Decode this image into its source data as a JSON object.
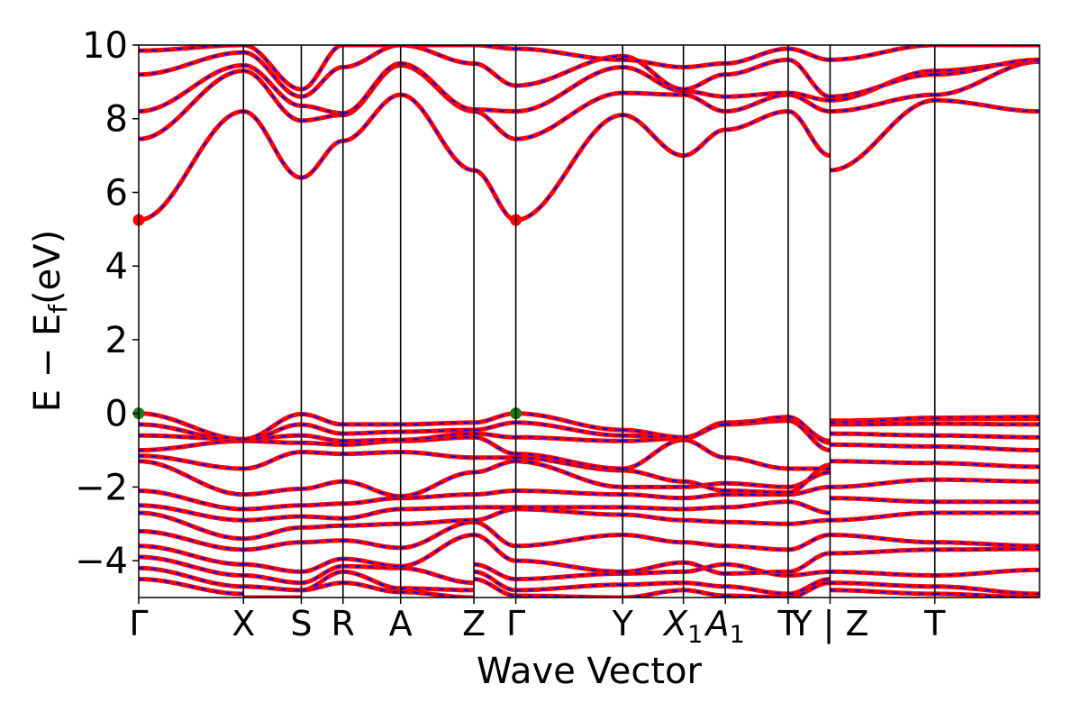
{
  "chart_data": {
    "type": "line",
    "title": "",
    "xlabel": "Wave Vector",
    "ylabel": "E − E",
    "ylabel_sub": "f",
    "ylabel_unit": "(eV)",
    "ylim": [
      -5,
      10
    ],
    "yticks": [
      {
        "value": -4,
        "label": "−4"
      },
      {
        "value": -2,
        "label": "−2"
      },
      {
        "value": 0,
        "label": "0"
      },
      {
        "value": 2,
        "label": "2"
      },
      {
        "value": 4,
        "label": "4"
      },
      {
        "value": 6,
        "label": "6"
      },
      {
        "value": 8,
        "label": "8"
      },
      {
        "value": 10,
        "label": "10"
      }
    ],
    "grid": false,
    "legend": "none",
    "colors": {
      "band_main": "#ff0000",
      "band_dash": "#0000ff",
      "vbm": "#1a7a1a",
      "cbm": "#ff0000",
      "axis": "#000000"
    },
    "segments": [
      [
        0,
        1.0
      ],
      [
        1.0,
        1.552
      ],
      [
        1.552,
        1.95
      ],
      [
        1.95,
        2.5
      ],
      [
        2.5,
        3.2
      ],
      [
        3.2,
        3.6
      ],
      [
        3.6,
        4.62
      ],
      [
        4.62,
        5.2
      ],
      [
        5.2,
        5.6
      ],
      [
        5.6,
        6.2
      ],
      [
        6.2,
        6.6
      ],
      [
        6.6,
        7.6
      ],
      [
        7.6,
        8.6
      ]
    ],
    "kpoints": [
      {
        "x": 0,
        "label": "Γ"
      },
      {
        "x": 1.0,
        "label": "X"
      },
      {
        "x": 1.552,
        "label": "S"
      },
      {
        "x": 1.95,
        "label": "R"
      },
      {
        "x": 2.5,
        "label": "A"
      },
      {
        "x": 3.2,
        "label": "Z"
      },
      {
        "x": 3.6,
        "label": "Γ"
      },
      {
        "x": 4.62,
        "label": "Y"
      },
      {
        "x": 5.2,
        "label": "X",
        "sub": "1"
      },
      {
        "x": 5.6,
        "label": "A",
        "sub": "1"
      },
      {
        "x": 6.2,
        "label": "T"
      },
      {
        "x": 6.6,
        "label": "Y | Z"
      },
      {
        "x": 7.6,
        "label": "T"
      }
    ],
    "markers": [
      {
        "type": "vbm",
        "x": 0,
        "y": 0
      },
      {
        "type": "vbm",
        "x": 3.6,
        "y": 0
      },
      {
        "type": "cbm",
        "x": 0,
        "y": 5.25
      },
      {
        "type": "cbm",
        "x": 3.6,
        "y": 5.25
      }
    ],
    "series": [
      {
        "values": [
          [
            -4.5,
            -4.9
          ],
          [
            -5,
            -5
          ],
          [
            -4.8,
            -4.6
          ],
          [
            -4.6,
            -4.85
          ],
          [
            -4.85,
            -5
          ],
          [
            -4.5,
            -4.95
          ],
          [
            -4.95,
            -5
          ],
          [
            -5,
            -4.8
          ],
          [
            -4.8,
            -4.95
          ],
          [
            -4.95,
            -5
          ],
          [
            -5,
            -4.6
          ],
          [
            -4.8,
            -4.9
          ],
          [
            -4.9,
            -5
          ]
        ]
      },
      {
        "values": [
          [
            -4.2,
            -4.7
          ],
          [
            -4.7,
            -4.8
          ],
          [
            -4.8,
            -4.3
          ],
          [
            -4.3,
            -4.75
          ],
          [
            -4.75,
            -4.8
          ],
          [
            -4.3,
            -4.8
          ],
          [
            -4.8,
            -4.65
          ],
          [
            -4.65,
            -4.6
          ],
          [
            -4.6,
            -4.7
          ],
          [
            -4.7,
            -4.9
          ],
          [
            -4.9,
            -4.5
          ],
          [
            -4.6,
            -4.7
          ],
          [
            -4.7,
            -4.9
          ]
        ]
      },
      {
        "values": [
          [
            -3.9,
            -4.4
          ],
          [
            -4.4,
            -4.6
          ],
          [
            -4.6,
            -4.15
          ],
          [
            -4.15,
            -4.2
          ],
          [
            -4.2,
            -4.6
          ],
          [
            -4.1,
            -4.5
          ],
          [
            -4.5,
            -4.35
          ],
          [
            -4.35,
            -4.3
          ],
          [
            -4.3,
            -4.1
          ],
          [
            -4.1,
            -4.4
          ],
          [
            -4.4,
            -4.3
          ],
          [
            -4.3,
            -4.4
          ],
          [
            -4.4,
            -4.25
          ]
        ]
      },
      {
        "values": [
          [
            -3.6,
            -4.1
          ],
          [
            -4.1,
            -4.3
          ],
          [
            -4.3,
            -3.95
          ],
          [
            -3.95,
            -4.15
          ],
          [
            -4.15,
            -3.3
          ],
          [
            -3.3,
            -4.0
          ],
          [
            -4.0,
            -4.3
          ],
          [
            -4.3,
            -4.05
          ],
          [
            -4.05,
            -4.35
          ],
          [
            -4.35,
            -4.3
          ],
          [
            -4.3,
            -3.8
          ],
          [
            -3.8,
            -3.7
          ],
          [
            -3.7,
            -3.68
          ]
        ]
      },
      {
        "values": [
          [
            -3.2,
            -3.7
          ],
          [
            -3.7,
            -3.5
          ],
          [
            -3.5,
            -3.45
          ],
          [
            -3.45,
            -3.65
          ],
          [
            -3.65,
            -2.95
          ],
          [
            -2.95,
            -3.6
          ],
          [
            -3.6,
            -3.3
          ],
          [
            -3.3,
            -3.5
          ],
          [
            -3.5,
            -3.6
          ],
          [
            -3.6,
            -3.7
          ],
          [
            -3.7,
            -3.3
          ],
          [
            -3.3,
            -3.5
          ],
          [
            -3.5,
            -3.6
          ]
        ]
      },
      {
        "values": [
          [
            -2.7,
            -3.4
          ],
          [
            -3.4,
            -3.1
          ],
          [
            -3.1,
            -3.05
          ],
          [
            -3.05,
            -3.0
          ],
          [
            -3.0,
            -2.9
          ],
          [
            -2.9,
            -2.6
          ],
          [
            -2.6,
            -2.75
          ],
          [
            -2.75,
            -2.9
          ],
          [
            -2.9,
            -2.95
          ],
          [
            -2.95,
            -3.0
          ],
          [
            -3.0,
            -2.9
          ],
          [
            -2.9,
            -2.7
          ],
          [
            -2.7,
            -2.7
          ]
        ]
      },
      {
        "values": [
          [
            -2.5,
            -2.9
          ],
          [
            -2.9,
            -2.8
          ],
          [
            -2.8,
            -2.85
          ],
          [
            -2.85,
            -2.6
          ],
          [
            -2.6,
            -2.55
          ],
          [
            -2.55,
            -2.55
          ],
          [
            -2.55,
            -2.55
          ],
          [
            -2.55,
            -2.6
          ],
          [
            -2.6,
            -2.55
          ],
          [
            -2.55,
            -2.4
          ],
          [
            -2.4,
            -2.7
          ],
          [
            -2.3,
            -2.4
          ],
          [
            -2.4,
            -2.4
          ]
        ]
      },
      {
        "values": [
          [
            -2.1,
            -2.6
          ],
          [
            -2.6,
            -2.5
          ],
          [
            -2.5,
            -2.45
          ],
          [
            -2.45,
            -2.3
          ],
          [
            -2.3,
            -2.2
          ],
          [
            -2.2,
            -2.1
          ],
          [
            -2.1,
            -2.2
          ],
          [
            -2.2,
            -2.3
          ],
          [
            -2.3,
            -2.2
          ],
          [
            -2.2,
            -2.2
          ],
          [
            -2.2,
            -2.0
          ],
          [
            -2.0,
            -1.8
          ],
          [
            -1.8,
            -1.85
          ]
        ]
      },
      {
        "values": [
          [
            -1.3,
            -2.2
          ],
          [
            -2.2,
            -2.05
          ],
          [
            -2.05,
            -1.85
          ],
          [
            -1.85,
            -2.25
          ],
          [
            -2.25,
            -1.6
          ],
          [
            -1.6,
            -1.3
          ],
          [
            -1.3,
            -2.0
          ],
          [
            -2.0,
            -2.0
          ],
          [
            -2.0,
            -1.9
          ],
          [
            -1.9,
            -2.0
          ],
          [
            -2.0,
            -1.6
          ],
          [
            -1.3,
            -1.35
          ],
          [
            -1.35,
            -1.45
          ]
        ]
      },
      {
        "values": [
          [
            -1.15,
            -1.5
          ],
          [
            -1.5,
            -1.05
          ],
          [
            -1.05,
            -1.1
          ],
          [
            -1.1,
            -1.05
          ],
          [
            -1.05,
            -1.2
          ],
          [
            -1.2,
            -1.2
          ],
          [
            -1.2,
            -1.55
          ],
          [
            -1.55,
            -1.85
          ],
          [
            -1.85,
            -2.1
          ],
          [
            -2.1,
            -2.15
          ],
          [
            -2.15,
            -1.4
          ],
          [
            -0.85,
            -0.9
          ],
          [
            -0.9,
            -1.0
          ]
        ]
      },
      {
        "values": [
          [
            -1.0,
            -0.75
          ],
          [
            -0.75,
            -0.8
          ],
          [
            -0.8,
            -0.85
          ],
          [
            -0.85,
            -0.75
          ],
          [
            -0.75,
            -0.65
          ],
          [
            -0.65,
            -1.1
          ],
          [
            -1.1,
            -1.5
          ],
          [
            -1.5,
            -0.72
          ],
          [
            -0.72,
            -1.2
          ],
          [
            -1.2,
            -1.5
          ],
          [
            -1.5,
            -1.5
          ],
          [
            -0.55,
            -0.6
          ],
          [
            -0.6,
            -0.65
          ]
        ]
      },
      {
        "values": [
          [
            -0.6,
            -0.7
          ],
          [
            -0.7,
            -0.6
          ],
          [
            -0.6,
            -0.75
          ],
          [
            -0.75,
            -0.72
          ],
          [
            -0.72,
            -0.55
          ],
          [
            -0.55,
            -0.65
          ],
          [
            -0.65,
            -0.75
          ],
          [
            -0.75,
            -0.68
          ],
          [
            -0.68,
            -0.3
          ],
          [
            -0.3,
            -0.2
          ],
          [
            -0.2,
            -1.0
          ],
          [
            -0.3,
            -0.28
          ],
          [
            -0.28,
            -0.3
          ]
        ]
      },
      {
        "values": [
          [
            -0.3,
            -0.75
          ],
          [
            -0.75,
            -0.3
          ],
          [
            -0.3,
            -0.55
          ],
          [
            -0.55,
            -0.5
          ],
          [
            -0.5,
            -0.45
          ],
          [
            -0.45,
            -0.25
          ],
          [
            -0.25,
            -0.6
          ],
          [
            -0.6,
            -0.66
          ],
          [
            -0.66,
            -0.25
          ],
          [
            -0.25,
            -0.15
          ],
          [
            -0.15,
            -0.75
          ],
          [
            -0.2,
            -0.15
          ],
          [
            -0.15,
            -0.15
          ]
        ]
      },
      {
        "values": [
          [
            0,
            -0.7
          ],
          [
            -0.7,
            -0.02
          ],
          [
            -0.02,
            -0.3
          ],
          [
            -0.3,
            -0.3
          ],
          [
            -0.3,
            -0.25
          ],
          [
            -0.25,
            0
          ],
          [
            0,
            -0.45
          ],
          [
            -0.45,
            -0.65
          ],
          [
            -0.65,
            -0.3
          ],
          [
            -0.3,
            -0.1
          ],
          [
            -0.1,
            -0.8
          ],
          [
            -0.25,
            -0.12
          ],
          [
            -0.12,
            -0.1
          ]
        ]
      },
      {
        "values": [
          [
            5.25,
            8.2
          ],
          [
            8.2,
            6.4
          ],
          [
            6.4,
            7.4
          ],
          [
            7.4,
            8.65
          ],
          [
            8.65,
            6.6
          ],
          [
            6.6,
            5.25
          ],
          [
            5.25,
            8.1
          ],
          [
            8.1,
            7.0
          ],
          [
            7.0,
            7.7
          ],
          [
            7.7,
            8.2
          ],
          [
            8.2,
            7.0
          ],
          [
            6.6,
            8.5
          ],
          [
            8.5,
            8.2
          ]
        ]
      },
      {
        "values": [
          [
            7.45,
            9.3
          ],
          [
            9.3,
            7.95
          ],
          [
            7.95,
            8.1
          ],
          [
            8.1,
            9.45
          ],
          [
            9.45,
            8.2
          ],
          [
            8.2,
            7.45
          ],
          [
            7.45,
            8.7
          ],
          [
            8.7,
            8.65
          ],
          [
            8.65,
            8.2
          ],
          [
            8.2,
            8.65
          ],
          [
            8.65,
            8.2
          ],
          [
            8.2,
            8.65
          ],
          [
            8.65,
            9.55
          ]
        ]
      },
      {
        "values": [
          [
            8.2,
            9.45
          ],
          [
            9.45,
            8.35
          ],
          [
            8.35,
            8.15
          ],
          [
            8.15,
            9.5
          ],
          [
            9.5,
            8.25
          ],
          [
            8.25,
            8.2
          ],
          [
            8.2,
            9.4
          ],
          [
            9.4,
            8.75
          ],
          [
            8.75,
            8.6
          ],
          [
            8.6,
            8.7
          ],
          [
            8.7,
            8.5
          ],
          [
            8.5,
            9.3
          ],
          [
            9.3,
            9.55
          ]
        ]
      },
      {
        "values": [
          [
            9.2,
            9.8
          ],
          [
            9.8,
            8.6
          ],
          [
            8.6,
            9.4
          ],
          [
            9.4,
            10
          ],
          [
            10,
            9.5
          ],
          [
            9.5,
            8.9
          ],
          [
            8.9,
            9.7
          ],
          [
            9.7,
            8.8
          ],
          [
            8.8,
            9.2
          ],
          [
            9.2,
            9.6
          ],
          [
            9.6,
            8.6
          ],
          [
            8.6,
            9.2
          ],
          [
            9.2,
            9.6
          ]
        ]
      },
      {
        "values": [
          [
            9.85,
            10
          ],
          [
            10,
            8.8
          ],
          [
            8.8,
            10
          ],
          [
            10,
            10
          ],
          [
            10,
            10
          ],
          [
            10,
            9.9
          ],
          [
            9.9,
            9.6
          ],
          [
            9.6,
            9.4
          ],
          [
            9.4,
            9.5
          ],
          [
            9.5,
            9.9
          ],
          [
            9.9,
            9.6
          ],
          [
            9.6,
            10
          ],
          [
            10,
            10
          ]
        ]
      }
    ]
  }
}
